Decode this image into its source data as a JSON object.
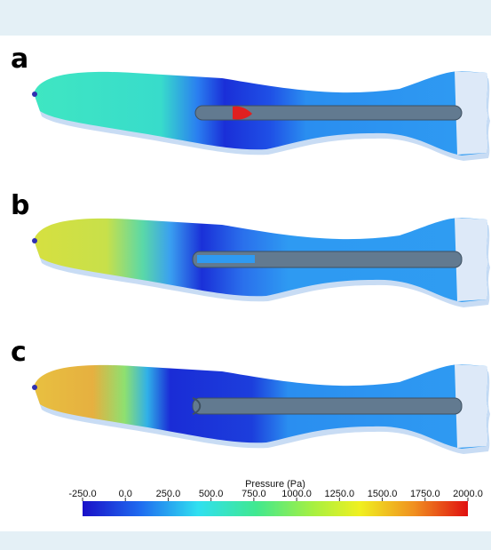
{
  "panels": [
    {
      "label": "a"
    },
    {
      "label": "b"
    },
    {
      "label": "c"
    }
  ],
  "colorbar": {
    "title": "Pressure (Pa)",
    "lim": [
      -250,
      2000
    ],
    "ticks": [
      {
        "value": -250,
        "label": "-250.0"
      },
      {
        "value": 0,
        "label": "0.0"
      },
      {
        "value": 250,
        "label": "250.0"
      },
      {
        "value": 500,
        "label": "500.0"
      },
      {
        "value": 750,
        "label": "750.0"
      },
      {
        "value": 1000,
        "label": "1000.0"
      },
      {
        "value": 1250,
        "label": "1250.0"
      },
      {
        "value": 1500,
        "label": "1500.0"
      },
      {
        "value": 1750,
        "label": "1750.0"
      },
      {
        "value": 2000,
        "label": "2000.0"
      }
    ]
  }
}
